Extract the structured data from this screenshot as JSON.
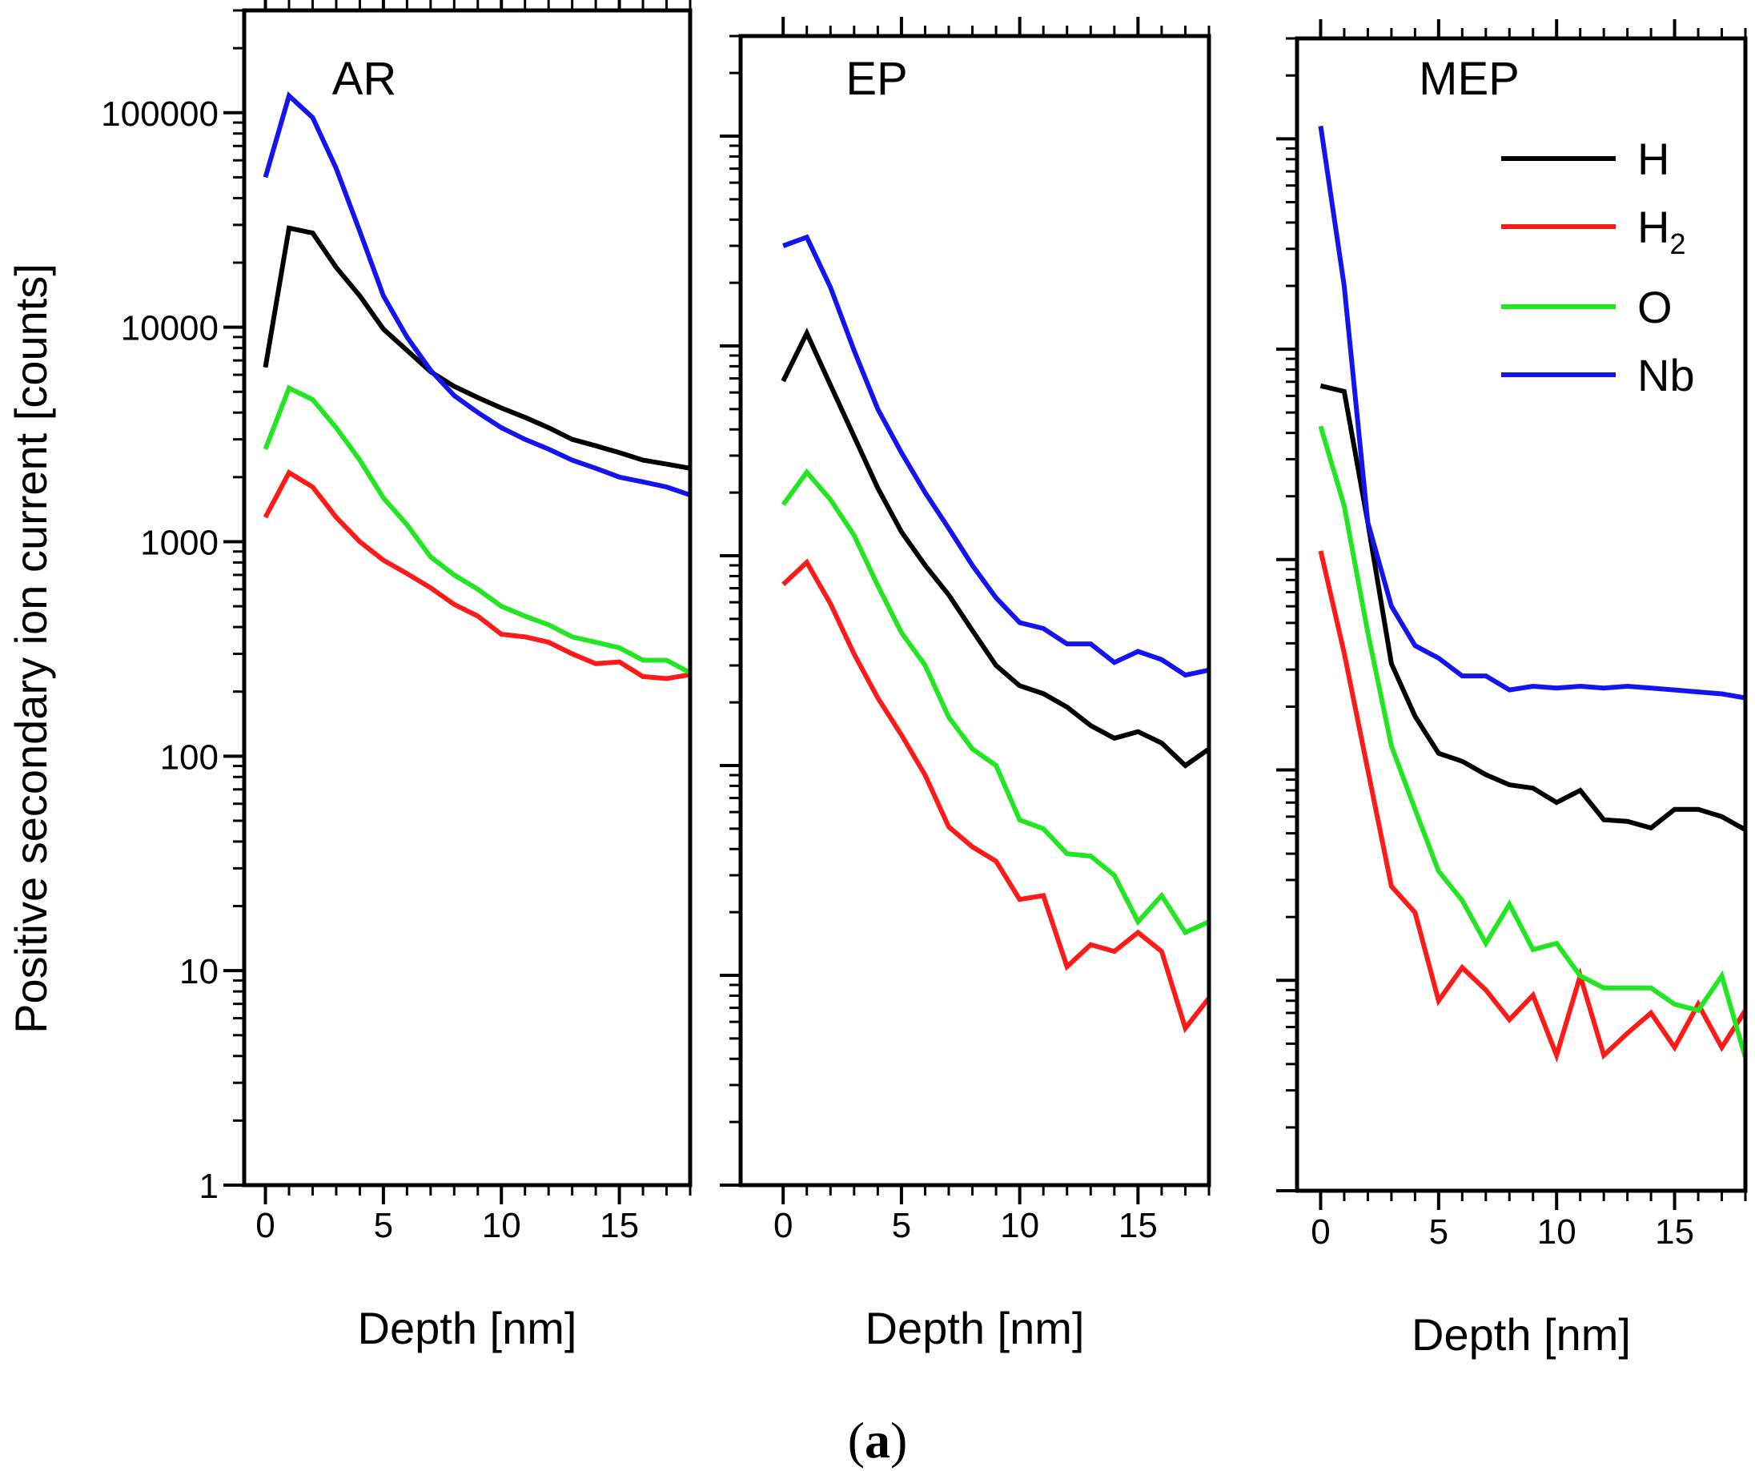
{
  "caption_letter": "a",
  "y_axis_label": "Positive secondary ion current [counts]",
  "colors": {
    "H": "#000000",
    "H2": "#ff1a1a",
    "O": "#22e622",
    "Nb": "#1414f0"
  },
  "legend": [
    {
      "key": "H",
      "label": "H",
      "sub": ""
    },
    {
      "key": "H2",
      "label": "H",
      "sub": "2"
    },
    {
      "key": "O",
      "label": "O",
      "sub": ""
    },
    {
      "key": "Nb",
      "label": "Nb",
      "sub": ""
    }
  ],
  "chart_data": [
    {
      "type": "line",
      "title": "AR",
      "xlabel": "Depth [nm]",
      "ylabel": "Positive secondary ion current [counts]",
      "yscale": "log",
      "xlim": [
        -0.9,
        18
      ],
      "ylim": [
        1,
        300000
      ],
      "xticks": [
        0,
        5,
        10,
        15
      ],
      "yticks": [
        1,
        10,
        100,
        1000,
        10000,
        100000
      ],
      "ytick_labels": [
        "1",
        "10",
        "100",
        "1000",
        "10000",
        "100000"
      ],
      "x": [
        0,
        1,
        2,
        3,
        4,
        5,
        6,
        7,
        8,
        9,
        10,
        11,
        12,
        13,
        14,
        15,
        16,
        17,
        18
      ],
      "series": [
        {
          "name": "H",
          "values": [
            6500,
            29000,
            27500,
            19000,
            14000,
            9800,
            7800,
            6200,
            5300,
            4700,
            4200,
            3800,
            3400,
            3000,
            2800,
            2600,
            2400,
            2300,
            2200
          ]
        },
        {
          "name": "H2",
          "values": [
            1300,
            2100,
            1800,
            1300,
            1000,
            820,
            710,
            610,
            510,
            450,
            370,
            360,
            340,
            300,
            270,
            275,
            235,
            230,
            240
          ]
        },
        {
          "name": "O",
          "values": [
            2700,
            5200,
            4600,
            3400,
            2400,
            1600,
            1200,
            850,
            700,
            600,
            500,
            450,
            410,
            360,
            340,
            320,
            280,
            280,
            245
          ]
        },
        {
          "name": "Nb",
          "values": [
            50000,
            120000,
            95000,
            55000,
            28000,
            14000,
            9000,
            6300,
            4800,
            4000,
            3400,
            3000,
            2700,
            2400,
            2200,
            2000,
            1900,
            1800,
            1650
          ]
        }
      ]
    },
    {
      "type": "line",
      "title": "EP",
      "xlabel": "Depth [nm]",
      "ylabel": "Positive secondary ion current [counts]",
      "yscale": "log",
      "xlim": [
        -1.8,
        18
      ],
      "ylim": [
        1,
        300000
      ],
      "xticks": [
        0,
        5,
        10,
        15
      ],
      "yticks": [
        1,
        10,
        100,
        1000,
        10000,
        100000
      ],
      "x": [
        0,
        1,
        2,
        3,
        4,
        5,
        6,
        7,
        8,
        9,
        10,
        11,
        12,
        13,
        14,
        15,
        16,
        17,
        18
      ],
      "series": [
        {
          "name": "H",
          "values": [
            6800,
            11500,
            6500,
            3700,
            2100,
            1300,
            900,
            650,
            440,
            300,
            240,
            220,
            190,
            155,
            135,
            145,
            128,
            100,
            120
          ]
        },
        {
          "name": "H2",
          "values": [
            730,
            930,
            590,
            340,
            210,
            140,
            90,
            51,
            41,
            35,
            23,
            24,
            11,
            14,
            13,
            16,
            13,
            5.6,
            7.8
          ]
        },
        {
          "name": "O",
          "values": [
            1750,
            2500,
            1850,
            1250,
            720,
            430,
            300,
            170,
            120,
            100,
            55,
            50,
            38,
            37,
            30,
            18,
            24,
            16,
            18
          ]
        },
        {
          "name": "Nb",
          "values": [
            30000,
            33000,
            19000,
            9500,
            5000,
            3100,
            2000,
            1350,
            900,
            630,
            480,
            450,
            380,
            380,
            310,
            350,
            320,
            270,
            285
          ]
        }
      ]
    },
    {
      "type": "line",
      "title": "MEP",
      "xlabel": "Depth [nm]",
      "ylabel": "Positive secondary ion current [counts]",
      "yscale": "log",
      "xlim": [
        -1.0,
        18
      ],
      "ylim": [
        1,
        300000
      ],
      "xticks": [
        0,
        5,
        10,
        15
      ],
      "yticks": [
        1,
        10,
        100,
        1000,
        10000,
        100000
      ],
      "x": [
        0,
        1,
        2,
        3,
        4,
        5,
        6,
        7,
        8,
        9,
        10,
        11,
        12,
        13,
        14,
        15,
        16,
        17,
        18
      ],
      "series": [
        {
          "name": "H",
          "values": [
            6700,
            6300,
            1500,
            320,
            180,
            120,
            110,
            95,
            85,
            82,
            70,
            80,
            58,
            57,
            53,
            65,
            65,
            60,
            52
          ]
        },
        {
          "name": "H2",
          "values": [
            1100,
            360,
            100,
            28,
            21,
            8,
            11.5,
            9,
            6.5,
            8.5,
            4.4,
            10.5,
            4.4,
            5.6,
            7,
            4.8,
            7.7,
            4.8,
            7.2
          ]
        },
        {
          "name": "O",
          "values": [
            4300,
            1800,
            450,
            130,
            65,
            33,
            24,
            15,
            23,
            14,
            15,
            10.5,
            9.2,
            9.2,
            9.2,
            7.7,
            7.2,
            10.5,
            4.3
          ]
        },
        {
          "name": "Nb",
          "values": [
            115000,
            20000,
            1500,
            600,
            390,
            340,
            280,
            280,
            240,
            250,
            245,
            250,
            245,
            250,
            245,
            240,
            235,
            230,
            220
          ]
        }
      ]
    }
  ]
}
